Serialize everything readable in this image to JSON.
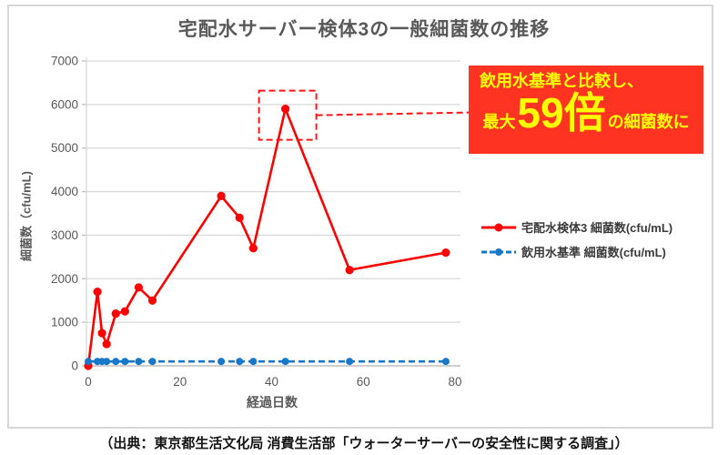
{
  "title": "宅配水サーバー検体3の一般細菌数の推移",
  "source": "（出典：東京都生活文化局 消費生活部「ウォーターサーバーの安全性に関する調査」）",
  "annotation": {
    "line1": "飲用水基準と比較し、",
    "max_label": "最大",
    "multiplier": "59倍",
    "suffix": "の細菌数に",
    "bg_color": "#ff3322",
    "text_color": "#ffff00",
    "callout_color": "#ff1515"
  },
  "legend": [
    {
      "label": "宅配水検体3 細菌数(cfu/mL)",
      "color": "#ff0000",
      "dash": false
    },
    {
      "label": "飲用水基準 細菌数(cfu/mL)",
      "color": "#1777c8",
      "dash": true
    }
  ],
  "chart_data": {
    "type": "line",
    "x": [
      0,
      2,
      3,
      4,
      6,
      8,
      11,
      14,
      29,
      33,
      36,
      43,
      57,
      78
    ],
    "series": [
      {
        "name": "宅配水検体3 細菌数(cfu/mL)",
        "color": "#ff0000",
        "dash": false,
        "values": [
          0,
          1700,
          750,
          500,
          1200,
          1250,
          1800,
          1500,
          3900,
          3400,
          2700,
          5900,
          2200,
          2600
        ]
      },
      {
        "name": "飲用水基準 細菌数(cfu/mL)",
        "color": "#1777c8",
        "dash": true,
        "values": [
          100,
          100,
          100,
          100,
          100,
          100,
          100,
          100,
          100,
          100,
          100,
          100,
          100,
          100
        ]
      }
    ],
    "title": "宅配水サーバー検体3の一般細菌数の推移",
    "xlabel": "経過日数",
    "ylabel": "細菌数（cfu/mL)",
    "xlim": [
      0,
      80
    ],
    "ylim": [
      0,
      7000
    ],
    "x_ticks": [
      0,
      20,
      40,
      60,
      80
    ],
    "y_ticks": [
      0,
      1000,
      2000,
      3000,
      4000,
      5000,
      6000,
      7000
    ],
    "grid": "horizontal",
    "legend_position": "right",
    "annotation_peak": {
      "x": 43,
      "y": 5900
    },
    "colors": {
      "gridline": "#d9d9d9",
      "axis": "#bfbfbf",
      "tick_text": "#595959"
    }
  }
}
